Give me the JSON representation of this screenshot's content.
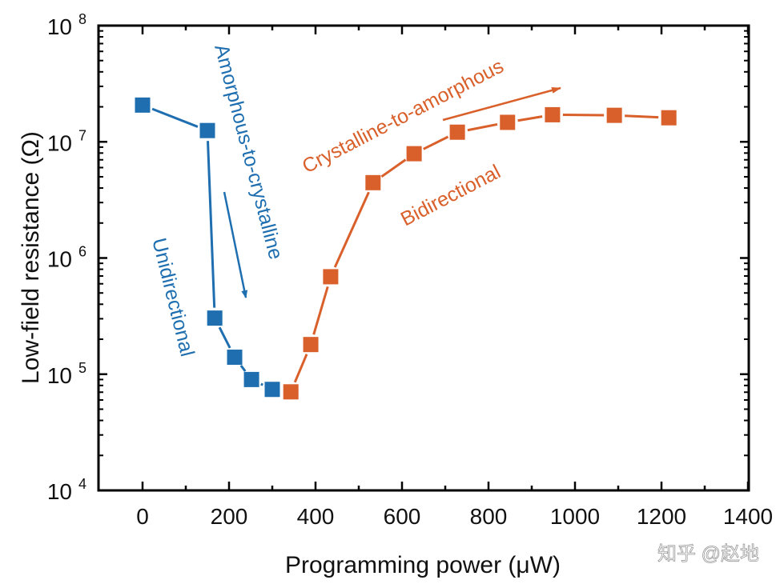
{
  "chart_data": {
    "type": "line",
    "xlabel": "Programming power (μW)",
    "ylabel": "Low-field resistance (Ω)",
    "xlim": [
      -100,
      1400
    ],
    "ylim": [
      10000,
      100000000
    ],
    "yscale": "log",
    "grid": false,
    "x_ticks": [
      "0",
      "200",
      "400",
      "600",
      "800",
      "1000",
      "1200",
      "1400"
    ],
    "x_tick_values": [
      0,
      200,
      400,
      600,
      800,
      1000,
      1200,
      1400
    ],
    "y_ticks": [
      {
        "base": "10",
        "exp": "4",
        "value": 10000
      },
      {
        "base": "10",
        "exp": "5",
        "value": 100000
      },
      {
        "base": "10",
        "exp": "6",
        "value": 1000000
      },
      {
        "base": "10",
        "exp": "7",
        "value": 10000000
      },
      {
        "base": "10",
        "exp": "8",
        "value": 100000000
      }
    ],
    "series": [
      {
        "color": "#1f6fb0",
        "marker": "square",
        "x": [
          0,
          150,
          167,
          213,
          252,
          300
        ],
        "y": [
          20700000,
          12500000,
          304000,
          140000,
          90000,
          74000
        ]
      },
      {
        "color": "#d9602b",
        "marker": "square",
        "x": [
          343,
          389,
          435,
          533,
          628,
          728,
          844,
          948,
          1091,
          1217
        ],
        "y": [
          70500,
          180000,
          690000,
          4450000,
          7900000,
          12100000,
          14700000,
          17100000,
          16900000,
          16100000
        ]
      }
    ],
    "annotations": [
      {
        "text": "Amorphous-to-crystalline",
        "color": "#1f6fb0"
      },
      {
        "text": "Unidirectional",
        "color": "#1f6fb0"
      },
      {
        "text": "Crystalline-to-amorphous",
        "color": "#d9602b"
      },
      {
        "text": "Bidirectional",
        "color": "#d9602b"
      }
    ]
  },
  "watermark": "知乎 @赵地"
}
